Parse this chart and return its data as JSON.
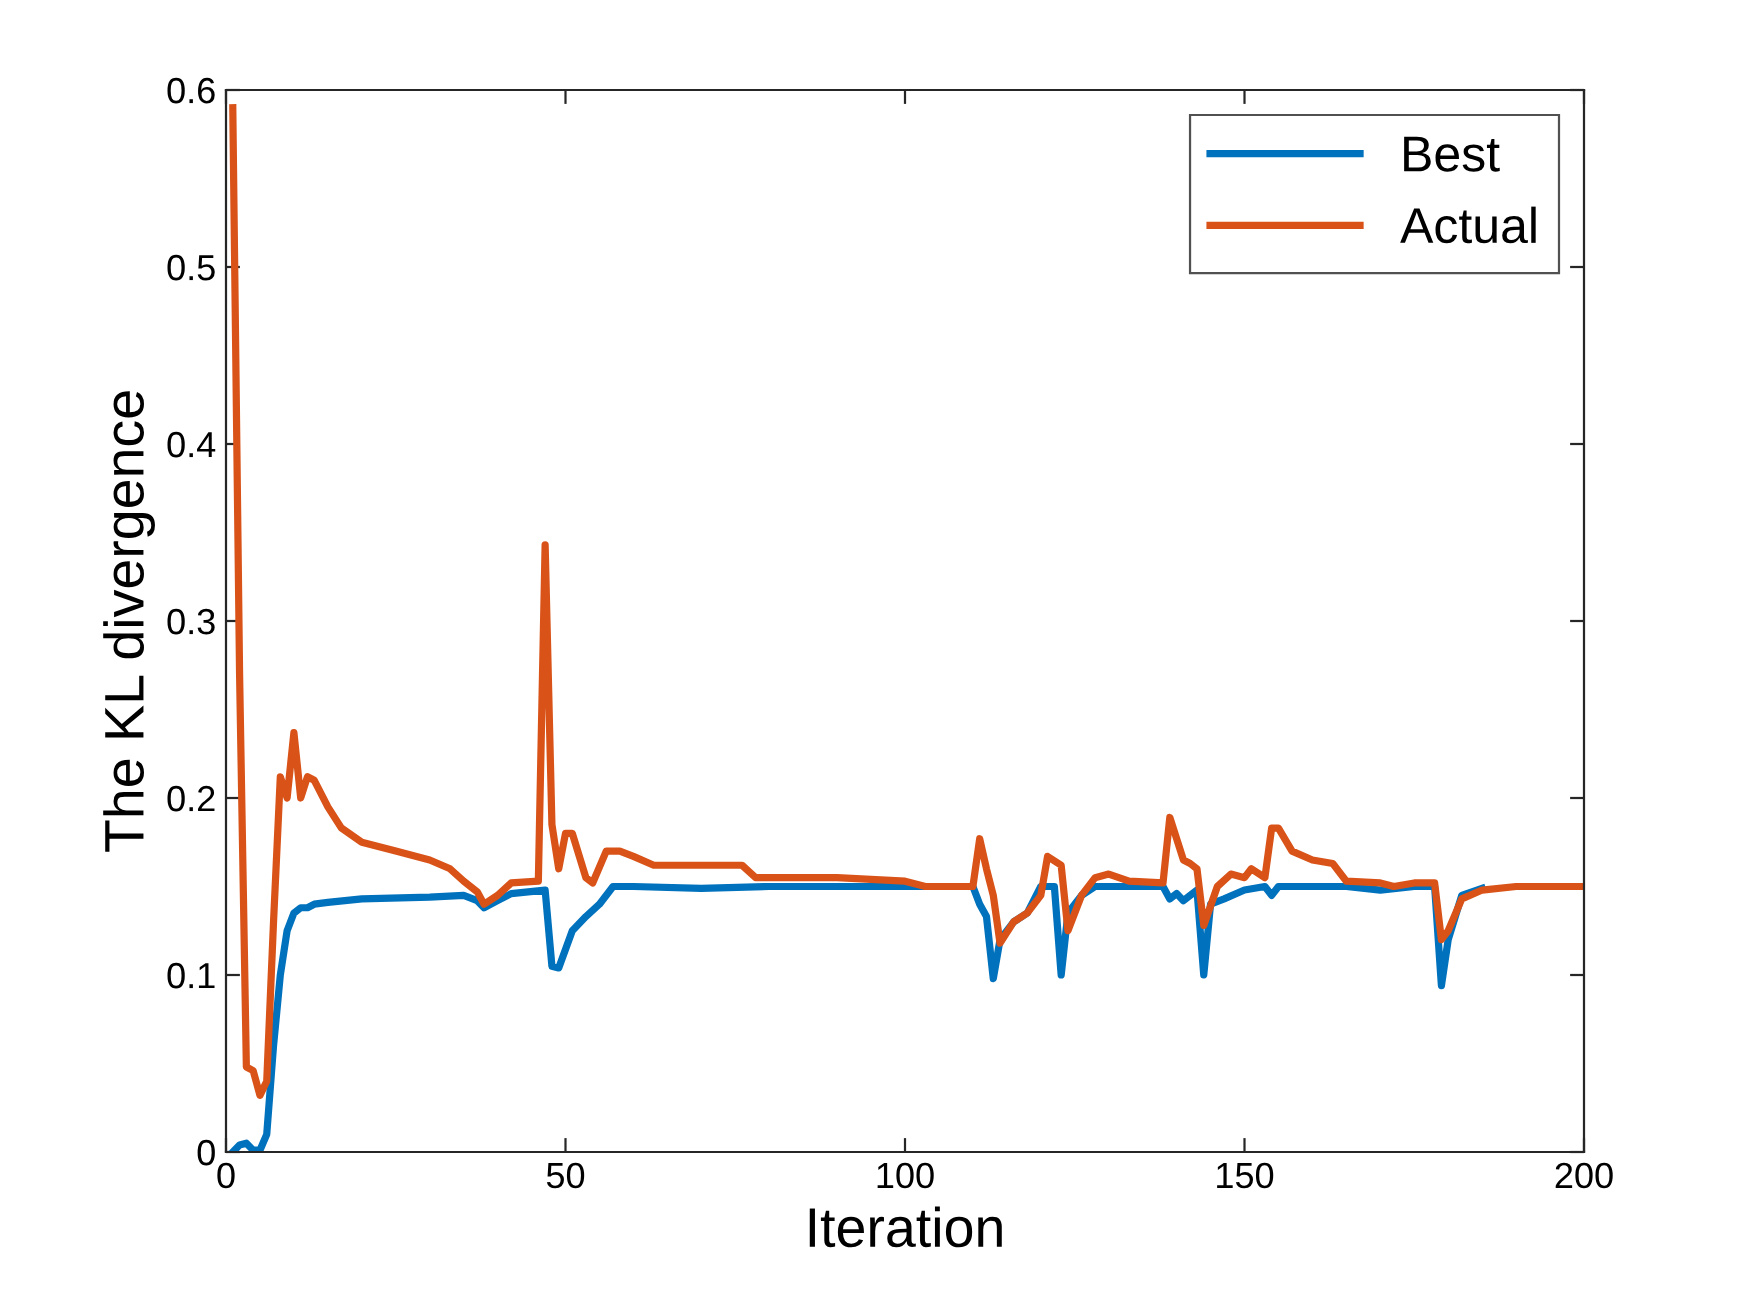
{
  "chart_data": {
    "type": "line",
    "xlabel": "Iteration",
    "ylabel": "The KL divergence",
    "xlim": [
      0,
      200
    ],
    "xticks": [
      0,
      50,
      100,
      150,
      200
    ],
    "ylim": [
      0,
      0.6
    ],
    "yticks": [
      0,
      0.1,
      0.2,
      0.3,
      0.4,
      0.5,
      0.6
    ],
    "grid": false,
    "legend": "top right",
    "marker": "none",
    "line_style": "solid",
    "series": [
      {
        "name": "Best",
        "color": "#0072bd",
        "x": [
          1,
          2,
          3,
          4,
          5,
          6,
          7,
          8,
          9,
          10,
          11,
          12,
          13,
          15,
          20,
          30,
          35,
          37,
          38,
          40,
          42,
          47,
          48,
          49,
          51,
          53,
          55,
          57,
          60,
          70,
          80,
          100,
          110,
          111,
          112,
          113,
          114,
          116,
          118,
          120,
          122,
          123,
          124,
          126,
          128,
          138,
          139,
          140,
          141,
          143,
          144,
          145,
          147,
          150,
          153,
          154,
          155,
          165,
          170,
          175,
          178,
          179,
          180,
          182,
          185
        ],
        "values": [
          0,
          0.004,
          0.005,
          0.001,
          0.001,
          0.01,
          0.06,
          0.1,
          0.125,
          0.135,
          0.138,
          0.138,
          0.14,
          0.141,
          0.143,
          0.144,
          0.145,
          0.142,
          0.138,
          0.142,
          0.146,
          0.148,
          0.105,
          0.104,
          0.125,
          0.133,
          0.14,
          0.15,
          0.15,
          0.149,
          0.15,
          0.15,
          0.15,
          0.14,
          0.133,
          0.098,
          0.12,
          0.13,
          0.135,
          0.15,
          0.15,
          0.1,
          0.135,
          0.145,
          0.15,
          0.15,
          0.143,
          0.146,
          0.142,
          0.148,
          0.1,
          0.14,
          0.143,
          0.148,
          0.15,
          0.145,
          0.15,
          0.15,
          0.148,
          0.15,
          0.15,
          0.094,
          0.12,
          0.145,
          0.149
        ]
      },
      {
        "name": "Actual",
        "color": "#d95319",
        "x": [
          1,
          2,
          3,
          4,
          5,
          6,
          7,
          8,
          9,
          10,
          11,
          12,
          13,
          15,
          17,
          20,
          25,
          30,
          33,
          35,
          37,
          38,
          40,
          42,
          46,
          47,
          48,
          49,
          50,
          51,
          53,
          54,
          56,
          58,
          60,
          63,
          70,
          76,
          78,
          90,
          100,
          103,
          110,
          111,
          112,
          113,
          114,
          116,
          118,
          120,
          121,
          123,
          124,
          126,
          128,
          130,
          133,
          138,
          139,
          141,
          142,
          143,
          144,
          146,
          148,
          150,
          151,
          153,
          154,
          155,
          157,
          160,
          163,
          165,
          170,
          172,
          175,
          178,
          179,
          180,
          182,
          185,
          190,
          200
        ],
        "values": [
          0.59,
          0.27,
          0.048,
          0.046,
          0.032,
          0.04,
          0.13,
          0.212,
          0.2,
          0.237,
          0.2,
          0.212,
          0.21,
          0.195,
          0.183,
          0.175,
          0.17,
          0.165,
          0.16,
          0.153,
          0.147,
          0.14,
          0.145,
          0.152,
          0.153,
          0.343,
          0.185,
          0.16,
          0.18,
          0.18,
          0.155,
          0.152,
          0.17,
          0.17,
          0.167,
          0.162,
          0.162,
          0.162,
          0.155,
          0.155,
          0.153,
          0.15,
          0.15,
          0.177,
          0.16,
          0.145,
          0.118,
          0.13,
          0.135,
          0.145,
          0.167,
          0.162,
          0.125,
          0.145,
          0.155,
          0.157,
          0.153,
          0.152,
          0.189,
          0.165,
          0.163,
          0.16,
          0.128,
          0.15,
          0.157,
          0.155,
          0.16,
          0.155,
          0.183,
          0.183,
          0.17,
          0.165,
          0.163,
          0.153,
          0.152,
          0.15,
          0.152,
          0.152,
          0.12,
          0.125,
          0.143,
          0.148,
          0.15,
          0.15
        ]
      }
    ]
  }
}
